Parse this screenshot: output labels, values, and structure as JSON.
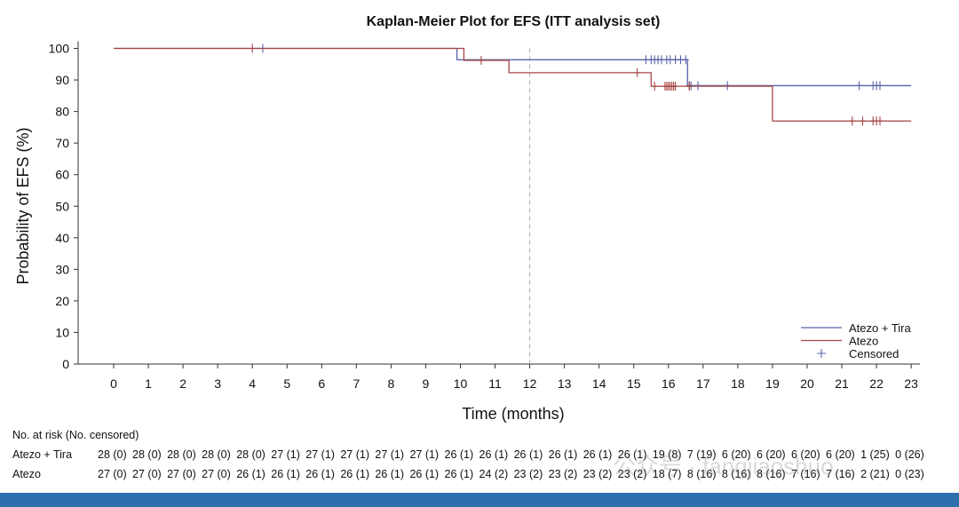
{
  "chart_data": {
    "type": "line",
    "title": "Kaplan-Meier Plot for EFS (ITT analysis set)",
    "xlabel": "Time (months)",
    "ylabel": "Probability of EFS (%)",
    "xlim": [
      0,
      23
    ],
    "ylim": [
      0,
      100
    ],
    "xticks": [
      0,
      1,
      2,
      3,
      4,
      5,
      6,
      7,
      8,
      9,
      10,
      11,
      12,
      13,
      14,
      15,
      16,
      17,
      18,
      19,
      20,
      21,
      22,
      23
    ],
    "yticks": [
      0,
      10,
      20,
      30,
      40,
      50,
      60,
      70,
      80,
      90,
      100
    ],
    "reference_line_x": 12,
    "legend_placement": "bottom-right",
    "legend": [
      "Atezo + Tira",
      "Atezo",
      "Censored"
    ],
    "series": [
      {
        "name": "Atezo + Tira",
        "color": "#5a63a8",
        "steps": [
          [
            0,
            100
          ],
          [
            9.9,
            96.4
          ],
          [
            16.55,
            88.2
          ],
          [
            23,
            88.2
          ]
        ],
        "censored": [
          [
            4.3,
            100
          ],
          [
            15.35,
            96.4
          ],
          [
            15.5,
            96.4
          ],
          [
            15.6,
            96.4
          ],
          [
            15.7,
            96.4
          ],
          [
            15.8,
            96.4
          ],
          [
            15.95,
            96.4
          ],
          [
            16.05,
            96.4
          ],
          [
            16.2,
            96.4
          ],
          [
            16.35,
            96.4
          ],
          [
            16.5,
            96.4
          ],
          [
            16.6,
            88.2
          ],
          [
            16.65,
            88.2
          ],
          [
            16.85,
            88.2
          ],
          [
            17.7,
            88.2
          ],
          [
            21.5,
            88.2
          ],
          [
            21.9,
            88.2
          ],
          [
            22.0,
            88.2
          ],
          [
            22.1,
            88.2
          ]
        ]
      },
      {
        "name": "Atezo",
        "color": "#a84545",
        "steps": [
          [
            0,
            100
          ],
          [
            10.1,
            96.2
          ],
          [
            11.4,
            92.3
          ],
          [
            15.5,
            88.0
          ],
          [
            19.0,
            77.0
          ],
          [
            23,
            77.0
          ]
        ],
        "censored": [
          [
            4.0,
            100
          ],
          [
            10.6,
            96.2
          ],
          [
            15.1,
            92.3
          ],
          [
            15.6,
            88.0
          ],
          [
            15.9,
            88.0
          ],
          [
            15.95,
            88.0
          ],
          [
            16.0,
            88.0
          ],
          [
            16.05,
            88.0
          ],
          [
            16.1,
            88.0
          ],
          [
            16.15,
            88.0
          ],
          [
            16.2,
            88.0
          ],
          [
            16.6,
            88.0
          ],
          [
            21.3,
            77.0
          ],
          [
            21.6,
            77.0
          ],
          [
            21.9,
            77.0
          ],
          [
            22.0,
            77.0
          ],
          [
            22.1,
            77.0
          ]
        ]
      }
    ]
  },
  "risk_table": {
    "title": "No. at risk (No. censored)",
    "rows": [
      {
        "label": "Atezo + Tira",
        "values": [
          "28 (0)",
          "28 (0)",
          "28 (0)",
          "28 (0)",
          "28 (0)",
          "27 (1)",
          "27 (1)",
          "27 (1)",
          "27 (1)",
          "27 (1)",
          "26 (1)",
          "26 (1)",
          "26 (1)",
          "26 (1)",
          "26 (1)",
          "26 (1)",
          "19 (8)",
          "7 (19)",
          "6 (20)",
          "6 (20)",
          "6 (20)",
          "6 (20)",
          "1 (25)",
          "0 (26)"
        ]
      },
      {
        "label": "Atezo",
        "values": [
          "27 (0)",
          "27 (0)",
          "27 (0)",
          "27 (0)",
          "26 (1)",
          "26 (1)",
          "26 (1)",
          "26 (1)",
          "26 (1)",
          "26 (1)",
          "26 (1)",
          "24 (2)",
          "23 (2)",
          "23 (2)",
          "23 (2)",
          "23 (2)",
          "18 (7)",
          "8 (16)",
          "8 (16)",
          "8 (16)",
          "7 (16)",
          "7 (16)",
          "2 (21)",
          "0 (23)"
        ]
      }
    ]
  },
  "watermark": "公众号 · fangjiaoshuo"
}
